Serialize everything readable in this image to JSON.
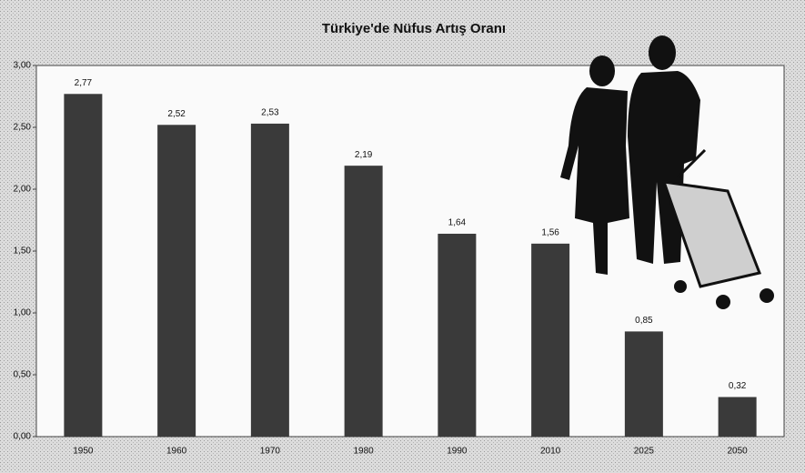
{
  "chart_data": {
    "type": "bar",
    "title": "Türkiye'de Nüfus Artış Oranı",
    "categories": [
      "1950",
      "1960",
      "1970",
      "1980",
      "1990",
      "2010",
      "2025",
      "2050"
    ],
    "values": [
      2.77,
      2.52,
      2.53,
      2.19,
      1.64,
      1.56,
      0.85,
      0.32
    ],
    "value_labels": [
      "2,77",
      "2,52",
      "2,53",
      "2,19",
      "1,64",
      "1,56",
      "0,85",
      "0,32"
    ],
    "color": "#3a3a3a",
    "ylim": [
      0,
      3
    ],
    "yticks": [
      {
        "value": 0,
        "label": "0,00"
      },
      {
        "value": 0.5,
        "label": "0,50"
      },
      {
        "value": 1,
        "label": "1,00"
      },
      {
        "value": 1.5,
        "label": "1,50"
      },
      {
        "value": 2,
        "label": "2,00"
      },
      {
        "value": 2.5,
        "label": "2,50"
      },
      {
        "value": 3,
        "label": "3,00"
      }
    ],
    "grid": false
  }
}
